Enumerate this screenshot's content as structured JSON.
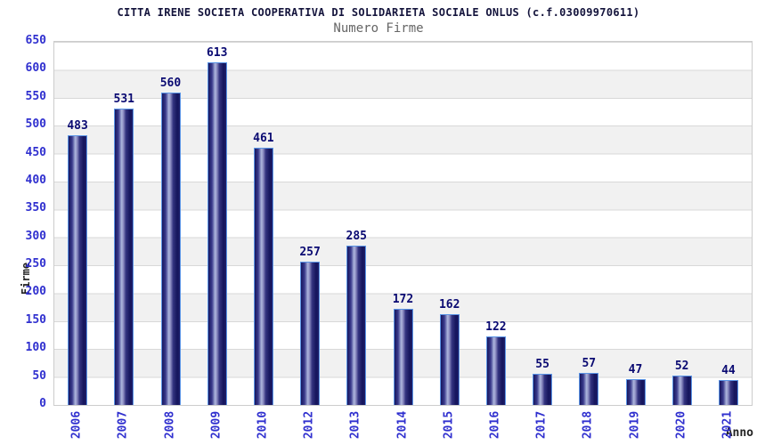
{
  "chart_data": {
    "type": "bar",
    "title": "CITTA IRENE SOCIETA COOPERATIVA DI SOLIDARIETA SOCIALE ONLUS (c.f.03009970611)",
    "subtitle": "Numero Firme",
    "xlabel": "Anno",
    "ylabel": "Firme",
    "categories": [
      "2006",
      "2007",
      "2008",
      "2009",
      "2010",
      "2012",
      "2013",
      "2014",
      "2015",
      "2016",
      "2017",
      "2018",
      "2019",
      "2020",
      "2021"
    ],
    "values": [
      483,
      531,
      560,
      613,
      461,
      257,
      285,
      172,
      162,
      122,
      55,
      57,
      47,
      52,
      44
    ],
    "ylim": [
      0,
      650
    ],
    "ytick_step": 50,
    "ytick_labels": [
      "650",
      "600",
      "550",
      "500",
      "450",
      "400",
      "350",
      "300",
      "250",
      "200",
      "150",
      "100",
      "50",
      "0"
    ],
    "grid": true,
    "legend": "none",
    "background_bands": [
      "#ffffff",
      "#f1f1f1"
    ],
    "colors": {
      "bar_dark": "#17175e",
      "bar_highlight": "#aeb7de",
      "bar_border": "#5b95e6",
      "tick_label": "#3030cf",
      "value_label": "#0a0a72",
      "title": "#14143c",
      "subtitle": "#666666",
      "axis_title": "#222222",
      "gridline": "#d8d8d8",
      "plot_border": "#cccccc"
    }
  }
}
